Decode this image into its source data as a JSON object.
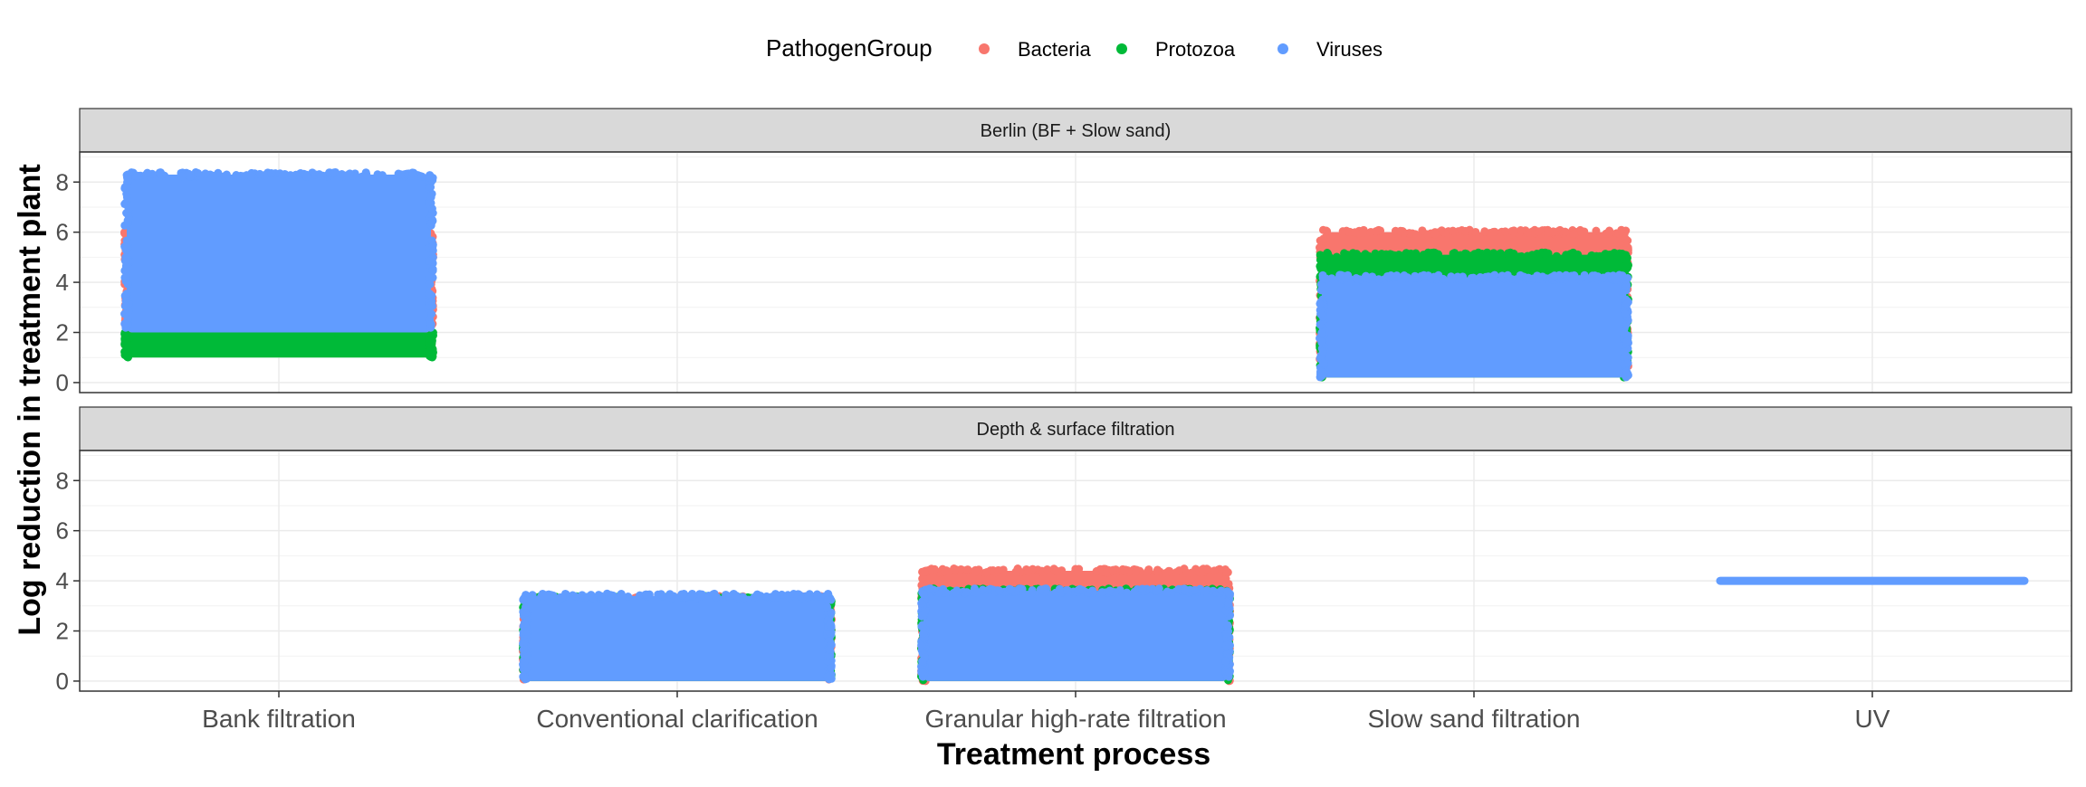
{
  "chart_data": {
    "type": "scatter",
    "title": "",
    "xlabel": "Treatment process",
    "ylabel": "Log reduction in treatment plant",
    "categories": [
      "Bank filtration",
      "Conventional clarification",
      "Granular high-rate filtration",
      "Slow sand filtration",
      "UV"
    ],
    "ylim": [
      -0.4,
      9.2
    ],
    "yticks": [
      0,
      2,
      4,
      6,
      8
    ],
    "grid": true,
    "legend": {
      "title": "PathogenGroup",
      "position": "top",
      "entries": [
        {
          "name": "Bacteria",
          "color": "#F8766D"
        },
        {
          "name": "Protozoa",
          "color": "#00BA38"
        },
        {
          "name": "Viruses",
          "color": "#619CFF"
        }
      ]
    },
    "panels": [
      {
        "label": "Berlin (BF + Slow sand)",
        "groups": [
          {
            "category": "Bank filtration",
            "series": "Protozoa",
            "y_min": 1.0,
            "y_max": 2.0
          },
          {
            "category": "Bank filtration",
            "series": "Bacteria",
            "y_min": 2.0,
            "y_max": 6.0
          },
          {
            "category": "Bank filtration",
            "series": "Viruses",
            "y_min": 2.0,
            "y_max": 8.3
          },
          {
            "category": "Slow sand filtration",
            "series": "Bacteria",
            "y_min": 0.2,
            "y_max": 6.0
          },
          {
            "category": "Slow sand filtration",
            "series": "Protozoa",
            "y_min": 0.2,
            "y_max": 5.1
          },
          {
            "category": "Slow sand filtration",
            "series": "Viruses",
            "y_min": 0.2,
            "y_max": 4.2
          }
        ]
      },
      {
        "label": "Depth & surface filtration",
        "groups": [
          {
            "category": "Conventional clarification",
            "series": "Bacteria",
            "y_min": 0.0,
            "y_max": 3.3
          },
          {
            "category": "Conventional clarification",
            "series": "Protozoa",
            "y_min": 0.0,
            "y_max": 3.3
          },
          {
            "category": "Conventional clarification",
            "series": "Viruses",
            "y_min": 0.0,
            "y_max": 3.4
          },
          {
            "category": "Granular high-rate filtration",
            "series": "Bacteria",
            "y_min": 0.0,
            "y_max": 4.4
          },
          {
            "category": "Granular high-rate filtration",
            "series": "Protozoa",
            "y_min": 0.0,
            "y_max": 3.6
          },
          {
            "category": "Granular high-rate filtration",
            "series": "Viruses",
            "y_min": 0.0,
            "y_max": 3.6
          },
          {
            "category": "UV",
            "series": "Viruses",
            "y_min": 4.0,
            "y_max": 4.0
          }
        ]
      }
    ]
  }
}
